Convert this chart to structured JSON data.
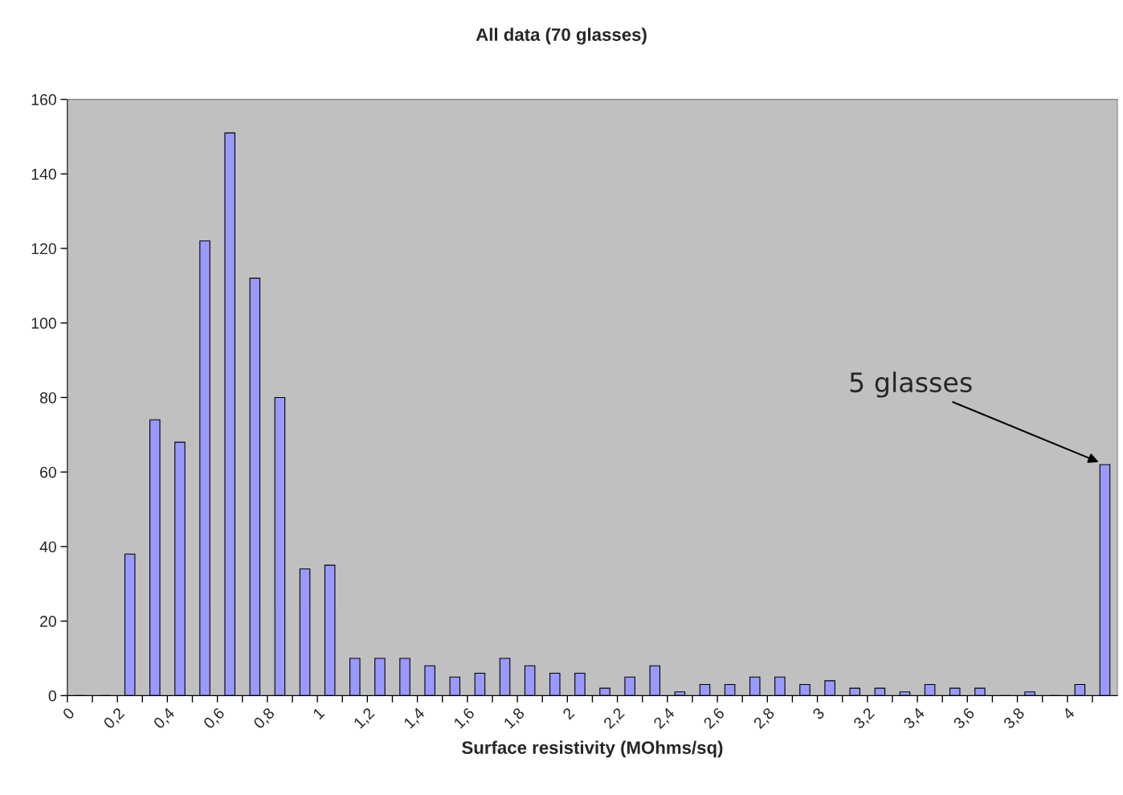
{
  "chart_data": {
    "type": "histogram",
    "title": "All data (70 glasses)",
    "xlabel": "Surface resistivity (MOhms/sq)",
    "bins": [
      0,
      0.1,
      0.2,
      0.3,
      0.4,
      0.5,
      0.6,
      0.7,
      0.8,
      0.9,
      1.0,
      1.1,
      1.2,
      1.3,
      1.4,
      1.5,
      1.6,
      1.7,
      1.8,
      1.9,
      2.0,
      2.1,
      2.2,
      2.3,
      2.4,
      2.5,
      2.6,
      2.7,
      2.8,
      2.9,
      3.0,
      3.1,
      3.2,
      3.3,
      3.4,
      3.5,
      3.6,
      3.7,
      3.8,
      3.9,
      4.0,
      4.1,
      4.2
    ],
    "values": [
      0,
      0,
      38,
      74,
      68,
      122,
      151,
      112,
      80,
      34,
      35,
      10,
      10,
      10,
      8,
      5,
      6,
      10,
      8,
      6,
      6,
      2,
      5,
      8,
      1,
      3,
      3,
      5,
      5,
      3,
      4,
      2,
      2,
      1,
      3,
      2,
      2,
      0,
      1,
      0,
      3,
      62
    ],
    "color": "#9999ff",
    "xlim": [
      0,
      4.2
    ],
    "xticks": [
      {
        "value": 0,
        "label": "0"
      },
      {
        "value": 0.1,
        "label": null
      },
      {
        "value": 0.2,
        "label": "0,2"
      },
      {
        "value": 0.3,
        "label": null
      },
      {
        "value": 0.4,
        "label": "0,4"
      },
      {
        "value": 0.5,
        "label": null
      },
      {
        "value": 0.6,
        "label": "0,6"
      },
      {
        "value": 0.7,
        "label": null
      },
      {
        "value": 0.8,
        "label": "0,8"
      },
      {
        "value": 0.9,
        "label": null
      },
      {
        "value": 1.0,
        "label": "1"
      },
      {
        "value": 1.1,
        "label": null
      },
      {
        "value": 1.2,
        "label": "1,2"
      },
      {
        "value": 1.3,
        "label": null
      },
      {
        "value": 1.4,
        "label": "1,4"
      },
      {
        "value": 1.5,
        "label": null
      },
      {
        "value": 1.6,
        "label": "1,6"
      },
      {
        "value": 1.7,
        "label": null
      },
      {
        "value": 1.8,
        "label": "1,8"
      },
      {
        "value": 1.9,
        "label": null
      },
      {
        "value": 2.0,
        "label": "2"
      },
      {
        "value": 2.1,
        "label": null
      },
      {
        "value": 2.2,
        "label": "2,2"
      },
      {
        "value": 2.3,
        "label": null
      },
      {
        "value": 2.4,
        "label": "2,4"
      },
      {
        "value": 2.5,
        "label": null
      },
      {
        "value": 2.6,
        "label": "2,6"
      },
      {
        "value": 2.7,
        "label": null
      },
      {
        "value": 2.8,
        "label": "2,8"
      },
      {
        "value": 2.9,
        "label": null
      },
      {
        "value": 3.0,
        "label": "3"
      },
      {
        "value": 3.1,
        "label": null
      },
      {
        "value": 3.2,
        "label": "3,2"
      },
      {
        "value": 3.3,
        "label": null
      },
      {
        "value": 3.4,
        "label": "3,4"
      },
      {
        "value": 3.5,
        "label": null
      },
      {
        "value": 3.6,
        "label": "3,6"
      },
      {
        "value": 3.7,
        "label": null
      },
      {
        "value": 3.8,
        "label": "3,8"
      },
      {
        "value": 3.9,
        "label": null
      },
      {
        "value": 4.0,
        "label": "4"
      },
      {
        "value": 4.1,
        "label": null
      }
    ],
    "ylim": [
      0,
      160
    ],
    "yticks": [
      0,
      20,
      40,
      60,
      80,
      100,
      120,
      140,
      160
    ],
    "grid": false,
    "annotations": [
      "5 glasses"
    ]
  }
}
